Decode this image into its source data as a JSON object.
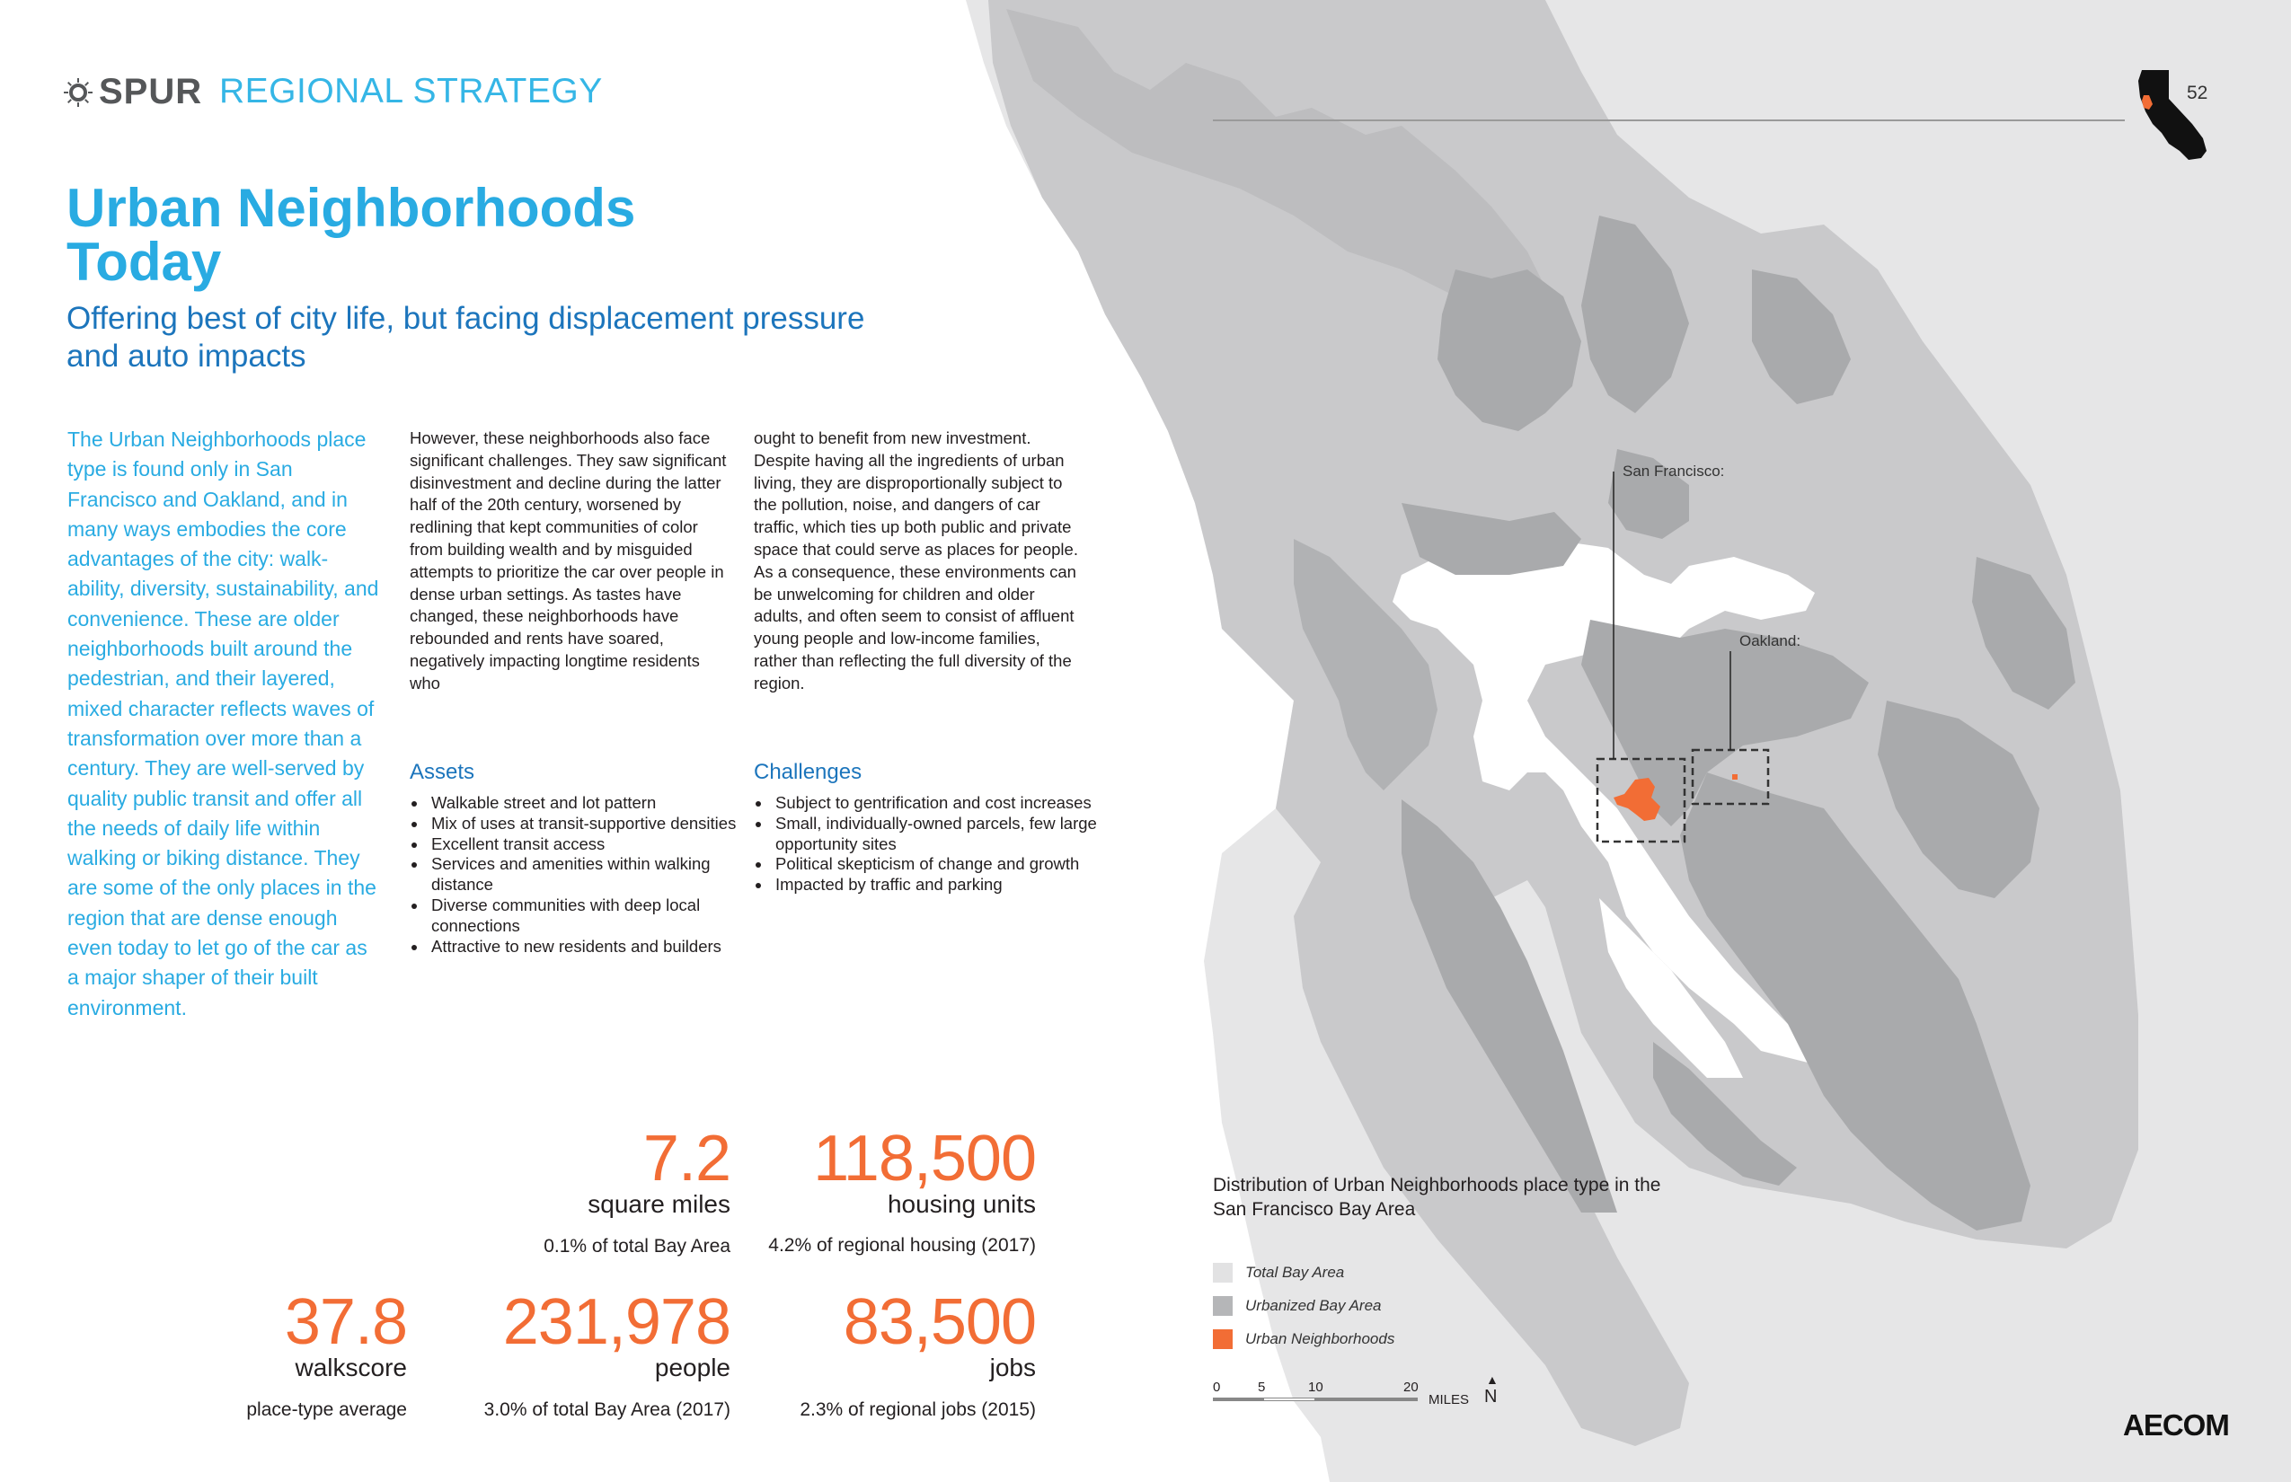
{
  "header": {
    "logo": "SPUR",
    "section": "REGIONAL STRATEGY",
    "page_number": "52"
  },
  "title": "Urban Neighborhoods Today",
  "subtitle": "Offering best of city life, but facing displacement pressure and auto impacts",
  "lead_paragraph": "The Urban Neighborhoods place type is found only in San Francisco and Oakland, and in many ways embodies the core advantages of the city: walk-ability, diversity, sustainability, and convenience. These are older neighborhoods built around the pedestrian, and their layered, mixed character reflects waves of transformation over more than a century.  They are well-served by quality public transit and offer all the needs of daily life within walking or biking distance. They are some of the only places in the region that are dense enough even today to let go of the car as a major shaper of their built environment.",
  "body_col2": "However, these neighborhoods also face significant challenges. They saw significant disinvestment and decline during the latter half of the 20th century, worsened by redlining that kept communities of color from building wealth and by misguided attempts to prioritize the car over people in dense urban settings. As tastes have changed, these neighborhoods have rebounded and rents have soared, negatively impacting longtime residents who",
  "body_col3": "ought to benefit from new investment. Despite having all the ingredients of urban living, they are disproportionally subject to the pollution, noise, and dangers of car traffic, which ties up both public and private space that could serve as places for people. As a consequence, these environments can be unwelcoming for children and older adults, and often seem to consist of affluent young people and low-income families, rather than reflecting the full diversity of the region.",
  "assets": {
    "heading": "Assets",
    "items": [
      "Walkable street and lot pattern",
      "Mix of uses at transit-supportive densities",
      "Excellent transit access",
      "Services and amenities within walking distance",
      "Diverse communities with deep local connections",
      "Attractive to new residents and builders"
    ]
  },
  "challenges": {
    "heading": "Challenges",
    "items": [
      "Subject to gentrification and cost increases",
      "Small, individually-owned parcels, few large opportunity sites",
      "Political skepticism of change and growth",
      "Impacted by traffic and parking"
    ]
  },
  "stats": {
    "area": {
      "value": "7.2",
      "unit": "square miles",
      "note_pct": "0.1%",
      "note_text": " of total Bay Area"
    },
    "housing": {
      "value": "118,500",
      "unit": "housing units",
      "note_pct": "4.2%",
      "note_text": " of regional housing (2017)"
    },
    "walkscore": {
      "value": "37.8",
      "unit": "walkscore",
      "note_pct": "",
      "note_text": "place-type average"
    },
    "people": {
      "value": "231,978",
      "unit": "people",
      "note_pct": "3.0%",
      "note_text": " of total Bay Area (2017)"
    },
    "jobs": {
      "value": "83,500",
      "unit": "jobs",
      "note_pct": "2.3%",
      "note_text": " of regional jobs (2015)"
    }
  },
  "map": {
    "label_sf": "San Francisco:",
    "label_oakland": "Oakland:",
    "legend_title": "Distribution of Urban Neighborhoods place type in the San Francisco Bay Area",
    "legend": [
      {
        "label": "Total Bay Area",
        "color": "#e2e2e3"
      },
      {
        "label": "Urbanized Bay Area",
        "color": "#b5b6b8"
      },
      {
        "label": "Urban Neighborhoods",
        "color": "#f26d35"
      }
    ],
    "scale_ticks": [
      "0",
      "5",
      "10",
      "20"
    ],
    "scale_unit": "MILES",
    "north": "N",
    "colors": {
      "land": "#c9c9cb",
      "outer": "#e6e6e7",
      "urban": "#a9aaac",
      "highlight": "#f26d35"
    }
  },
  "footer_logo": "AECOM"
}
